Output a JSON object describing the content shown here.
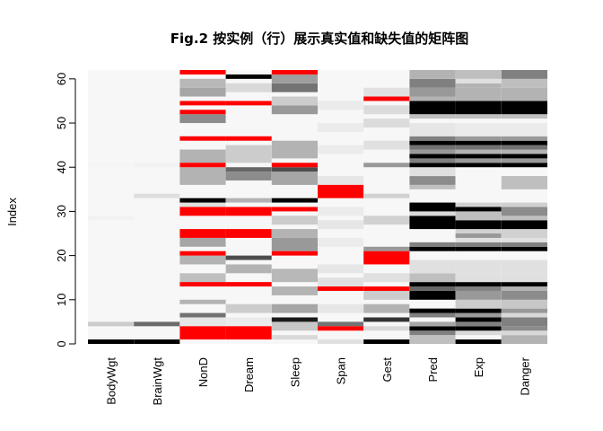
{
  "chart_data": {
    "type": "heatmap",
    "title": "Fig.2 按实例（行）展示真实值和缺失值的矩阵图",
    "ylabel": "Index",
    "xlabel": "",
    "ylim": [
      0,
      62
    ],
    "y_ticks": [
      0,
      10,
      20,
      30,
      40,
      50,
      60
    ],
    "grid": false,
    "legend": "none",
    "missing_color": "#ff0000",
    "columns": [
      "BodyWgt",
      "BrainWgt",
      "NonD",
      "Dream",
      "Sleep",
      "Span",
      "Gest",
      "Pred",
      "Exp",
      "Danger"
    ],
    "missing_ranges": {
      "NonD": [
        [
          1,
          4
        ],
        [
          13,
          14
        ],
        [
          20,
          21
        ],
        [
          24,
          26
        ],
        [
          29,
          31
        ],
        [
          40,
          41
        ],
        [
          46,
          47
        ],
        [
          52,
          53
        ],
        [
          54,
          55
        ],
        [
          61,
          62
        ]
      ],
      "Dream": [
        [
          1,
          4
        ],
        [
          13,
          14
        ],
        [
          24,
          26
        ],
        [
          29,
          31
        ],
        [
          46,
          47
        ],
        [
          54,
          55
        ]
      ],
      "Sleep": [
        [
          20,
          21
        ],
        [
          30,
          31
        ],
        [
          40,
          41
        ],
        [
          61,
          62
        ]
      ],
      "Span": [
        [
          3,
          4
        ],
        [
          12,
          13
        ],
        [
          33,
          36
        ]
      ],
      "Gest": [
        [
          12,
          13
        ],
        [
          18,
          21
        ],
        [
          55,
          56
        ]
      ]
    },
    "gray_levels": {
      "BodyWgt": [
        [
          0,
          1,
          0.0
        ],
        [
          4,
          5,
          0.8
        ],
        [
          28,
          29,
          0.95
        ],
        [
          40,
          41,
          0.96
        ]
      ],
      "BrainWgt": [
        [
          0,
          1,
          0.0
        ],
        [
          4,
          5,
          0.42
        ],
        [
          33,
          34,
          0.87
        ],
        [
          40,
          41,
          0.95
        ]
      ],
      "NonD": [
        [
          4,
          6,
          0.9
        ],
        [
          6,
          7,
          0.45
        ],
        [
          9,
          10,
          0.7
        ],
        [
          14,
          16,
          0.75
        ],
        [
          18,
          20,
          0.7
        ],
        [
          22,
          24,
          0.65
        ],
        [
          31,
          32,
          0.88
        ],
        [
          32,
          33,
          0.0
        ],
        [
          36,
          40,
          0.7
        ],
        [
          41,
          44,
          0.7
        ],
        [
          50,
          52,
          0.55
        ],
        [
          56,
          58,
          0.65
        ],
        [
          58,
          60,
          0.72
        ]
      ],
      "Dream": [
        [
          4,
          6,
          0.92
        ],
        [
          7,
          9,
          0.8
        ],
        [
          16,
          18,
          0.7
        ],
        [
          19,
          20,
          0.3
        ],
        [
          32,
          33,
          0.7
        ],
        [
          37,
          39,
          0.55
        ],
        [
          39,
          40,
          0.4
        ],
        [
          41,
          45,
          0.8
        ],
        [
          57,
          59,
          0.85
        ],
        [
          60,
          61,
          0.0
        ]
      ],
      "Sleep": [
        [
          1,
          2,
          0.85
        ],
        [
          3,
          5,
          0.78
        ],
        [
          5,
          6,
          0.1
        ],
        [
          7,
          9,
          0.65
        ],
        [
          11,
          13,
          0.7
        ],
        [
          14,
          17,
          0.72
        ],
        [
          21,
          24,
          0.6
        ],
        [
          24,
          26,
          0.7
        ],
        [
          27,
          29,
          0.8
        ],
        [
          32,
          33,
          0.0
        ],
        [
          36,
          39,
          0.65
        ],
        [
          39,
          40,
          0.3
        ],
        [
          42,
          46,
          0.7
        ],
        [
          52,
          54,
          0.6
        ],
        [
          54,
          56,
          0.8
        ],
        [
          57,
          59,
          0.45
        ],
        [
          59,
          61,
          0.62
        ]
      ],
      "Span": [
        [
          0,
          1,
          0.88
        ],
        [
          4,
          5,
          0.45
        ],
        [
          7,
          9,
          0.9
        ],
        [
          13,
          15,
          0.88
        ],
        [
          16,
          18,
          0.9
        ],
        [
          22,
          24,
          0.92
        ],
        [
          26,
          28,
          0.9
        ],
        [
          29,
          31,
          0.92
        ],
        [
          36,
          38,
          0.9
        ],
        [
          43,
          45,
          0.92
        ],
        [
          48,
          50,
          0.92
        ],
        [
          53,
          55,
          0.92
        ]
      ],
      "Gest": [
        [
          0,
          1,
          0.0
        ],
        [
          3,
          4,
          0.85
        ],
        [
          5,
          6,
          0.2
        ],
        [
          7,
          9,
          0.7
        ],
        [
          10,
          12,
          0.8
        ],
        [
          14,
          16,
          0.88
        ],
        [
          21,
          22,
          0.6
        ],
        [
          27,
          29,
          0.82
        ],
        [
          33,
          34,
          0.82
        ],
        [
          40,
          41,
          0.6
        ],
        [
          44,
          46,
          0.88
        ],
        [
          49,
          51,
          0.86
        ],
        [
          52,
          54,
          0.86
        ],
        [
          56,
          58,
          0.88
        ]
      ],
      "Pred": [
        [
          0,
          2,
          0.75
        ],
        [
          2,
          3,
          0.5
        ],
        [
          3,
          4,
          0.0
        ],
        [
          4,
          5,
          0.65
        ],
        [
          6,
          7,
          0.5
        ],
        [
          7,
          8,
          0.0
        ],
        [
          10,
          12,
          0.0
        ],
        [
          12,
          13,
          0.4
        ],
        [
          13,
          14,
          0.0
        ],
        [
          14,
          16,
          0.75
        ],
        [
          16,
          19,
          0.88
        ],
        [
          21,
          22,
          0.0
        ],
        [
          22,
          23,
          0.5
        ],
        [
          26,
          29,
          0.0
        ],
        [
          29,
          30,
          0.85
        ],
        [
          30,
          31,
          0.0
        ],
        [
          31,
          32,
          0.0
        ],
        [
          35,
          36,
          0.75
        ],
        [
          36,
          38,
          0.55
        ],
        [
          38,
          40,
          0.88
        ],
        [
          40,
          41,
          0.0
        ],
        [
          41,
          42,
          0.5
        ],
        [
          42,
          43,
          0.0
        ],
        [
          43,
          44,
          0.6
        ],
        [
          44,
          45,
          0.45
        ],
        [
          45,
          46,
          0.0
        ],
        [
          46,
          47,
          0.5
        ],
        [
          47,
          50,
          0.9
        ],
        [
          51,
          52,
          0.75
        ],
        [
          52,
          55,
          0.0
        ],
        [
          55,
          56,
          0.7
        ],
        [
          56,
          58,
          0.6
        ],
        [
          58,
          60,
          0.5
        ],
        [
          60,
          62,
          0.7
        ]
      ],
      "Exp": [
        [
          0,
          1,
          0.0
        ],
        [
          2,
          3,
          0.85
        ],
        [
          3,
          4,
          0.0
        ],
        [
          4,
          5,
          0.5
        ],
        [
          5,
          6,
          0.0
        ],
        [
          6,
          7,
          0.6
        ],
        [
          7,
          8,
          0.0
        ],
        [
          8,
          10,
          0.8
        ],
        [
          10,
          12,
          0.6
        ],
        [
          12,
          13,
          0.5
        ],
        [
          13,
          14,
          0.0
        ],
        [
          14,
          16,
          0.88
        ],
        [
          16,
          19,
          0.88
        ],
        [
          21,
          22,
          0.0
        ],
        [
          22,
          23,
          0.5
        ],
        [
          23,
          24,
          0.88
        ],
        [
          24,
          25,
          0.6
        ],
        [
          25,
          26,
          0.82
        ],
        [
          26,
          28,
          0.0
        ],
        [
          28,
          30,
          0.75
        ],
        [
          30,
          31,
          0.0
        ],
        [
          31,
          32,
          0.82
        ],
        [
          40,
          41,
          0.0
        ],
        [
          41,
          42,
          0.6
        ],
        [
          42,
          43,
          0.0
        ],
        [
          43,
          44,
          0.7
        ],
        [
          44,
          45,
          0.45
        ],
        [
          45,
          46,
          0.0
        ],
        [
          46,
          47,
          0.6
        ],
        [
          47,
          50,
          0.92
        ],
        [
          51,
          52,
          0.75
        ],
        [
          52,
          55,
          0.0
        ],
        [
          55,
          56,
          0.7
        ],
        [
          56,
          58,
          0.7
        ],
        [
          58,
          59,
          0.7
        ],
        [
          59,
          60,
          0.88
        ],
        [
          60,
          62,
          0.75
        ]
      ],
      "Danger": [
        [
          0,
          2,
          0.7
        ],
        [
          2,
          3,
          0.85
        ],
        [
          3,
          4,
          0.55
        ],
        [
          4,
          6,
          0.5
        ],
        [
          6,
          7,
          0.85
        ],
        [
          7,
          8,
          0.6
        ],
        [
          8,
          10,
          0.78
        ],
        [
          10,
          12,
          0.55
        ],
        [
          12,
          13,
          0.7
        ],
        [
          13,
          14,
          0.0
        ],
        [
          14,
          16,
          0.88
        ],
        [
          16,
          19,
          0.88
        ],
        [
          21,
          22,
          0.0
        ],
        [
          22,
          23,
          0.5
        ],
        [
          23,
          24,
          0.88
        ],
        [
          24,
          26,
          0.82
        ],
        [
          26,
          28,
          0.0
        ],
        [
          28,
          29,
          0.75
        ],
        [
          29,
          31,
          0.55
        ],
        [
          31,
          32,
          0.82
        ],
        [
          35,
          38,
          0.75
        ],
        [
          40,
          41,
          0.0
        ],
        [
          41,
          42,
          0.6
        ],
        [
          42,
          43,
          0.0
        ],
        [
          43,
          44,
          0.7
        ],
        [
          44,
          45,
          0.45
        ],
        [
          45,
          46,
          0.0
        ],
        [
          46,
          47,
          0.6
        ],
        [
          47,
          50,
          0.92
        ],
        [
          51,
          52,
          0.75
        ],
        [
          52,
          55,
          0.0
        ],
        [
          55,
          56,
          0.7
        ],
        [
          56,
          58,
          0.7
        ],
        [
          58,
          60,
          0.75
        ],
        [
          60,
          62,
          0.5
        ]
      ]
    }
  }
}
